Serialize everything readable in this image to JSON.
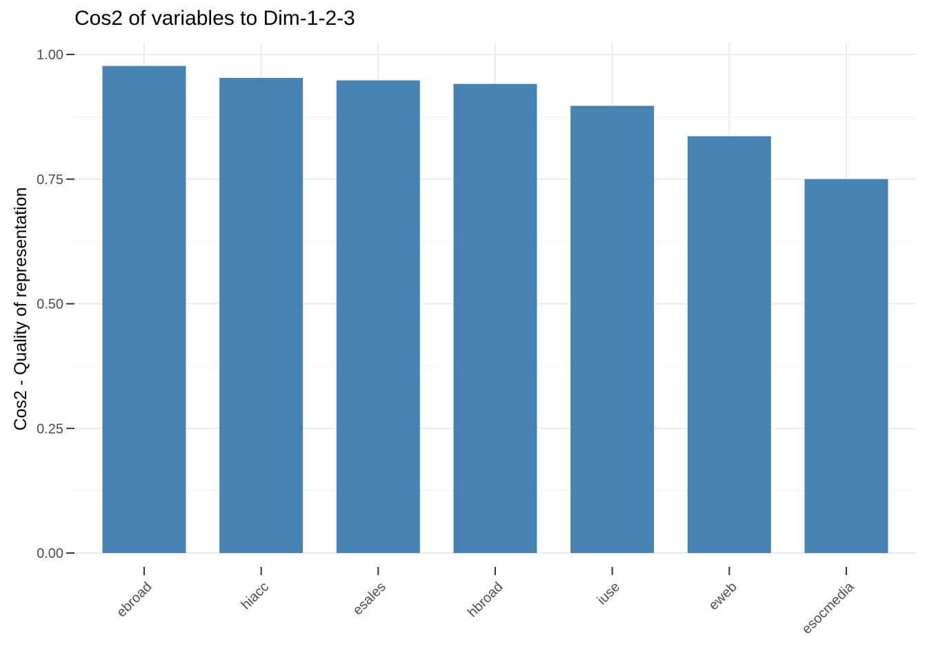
{
  "chart_data": {
    "type": "bar",
    "title": "Cos2 of variables to Dim-1-2-3",
    "xlabel": "",
    "ylabel": "Cos2 - Quality of representation",
    "categories": [
      "ebroad",
      "hiacc",
      "esales",
      "hbroad",
      "iuse",
      "eweb",
      "esocmedia"
    ],
    "values": [
      0.977,
      0.953,
      0.948,
      0.941,
      0.897,
      0.836,
      0.75
    ],
    "ylim": [
      0,
      1.0
    ],
    "yticks": [
      "0.00",
      "0.25",
      "0.50",
      "0.75",
      "1.00"
    ],
    "bar_color": "#4682B4",
    "grid": true,
    "legend": "none"
  }
}
